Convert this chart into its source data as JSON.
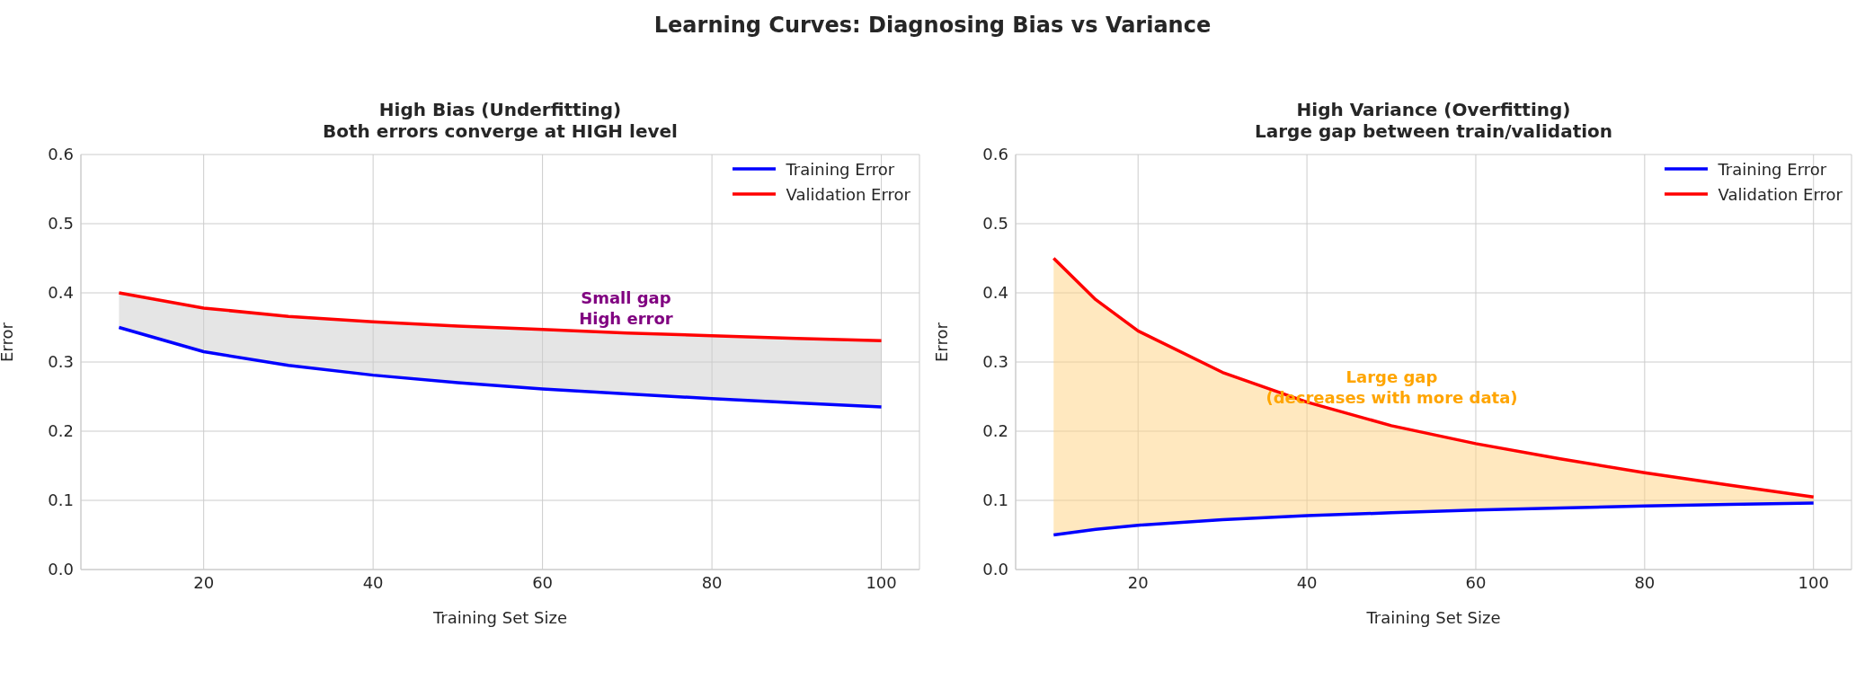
{
  "chart_data": [
    {
      "type": "line",
      "title": "Learning Curves: Diagnosing Bias vs Variance",
      "subtitle": "High Bias (Underfitting)\nBoth errors converge at HIGH level",
      "xlabel": "Training Set Size",
      "ylabel": "Error",
      "x": [
        10,
        20,
        30,
        40,
        50,
        60,
        70,
        80,
        90,
        100
      ],
      "series": [
        {
          "name": "Training Error",
          "color": "#0000ff",
          "values": [
            0.35,
            0.315,
            0.295,
            0.281,
            0.27,
            0.261,
            0.254,
            0.247,
            0.241,
            0.235
          ]
        },
        {
          "name": "Validation Error",
          "color": "#ff0000",
          "values": [
            0.4,
            0.378,
            0.366,
            0.358,
            0.352,
            0.347,
            0.342,
            0.338,
            0.334,
            0.331
          ],
          "lower": [
            0.35,
            0.315,
            0.295,
            0.281,
            0.27,
            0.261,
            0.254,
            0.247,
            0.241,
            0.235
          ],
          "upper": [
            0.4,
            0.378,
            0.366,
            0.358,
            0.352,
            0.347,
            0.342,
            0.338,
            0.334,
            0.331
          ]
        }
      ],
      "annotations": [
        "Small gap\nHigh error"
      ],
      "xlim": [
        5.5,
        104.5
      ],
      "xticks": [
        20,
        40,
        60,
        80,
        100
      ],
      "ylim": [
        0,
        0.6
      ],
      "yticks": [
        {
          "value": 0,
          "label": "0.0"
        },
        {
          "value": 0.1,
          "label": "0.1"
        },
        {
          "value": 0.2,
          "label": "0.2"
        },
        {
          "value": 0.3,
          "label": "0.3"
        },
        {
          "value": 0.4,
          "label": "0.4"
        },
        {
          "value": 0.5,
          "label": "0.5"
        },
        {
          "value": 0.6,
          "label": "0.6"
        }
      ],
      "grid": true,
      "legend": "top right"
    },
    {
      "type": "line",
      "subtitle": "High Variance (Overfitting)\nLarge gap between train/validation",
      "xlabel": "Training Set Size",
      "ylabel": "Error",
      "x": [
        10,
        15,
        20,
        30,
        40,
        50,
        60,
        70,
        80,
        90,
        100
      ],
      "series": [
        {
          "name": "Training Error",
          "color": "#0000ff",
          "values": [
            0.05,
            0.058,
            0.064,
            0.072,
            0.078,
            0.082,
            0.086,
            0.089,
            0.092,
            0.094,
            0.096
          ]
        },
        {
          "name": "Validation Error",
          "color": "#ff0000",
          "values": [
            0.45,
            0.39,
            0.345,
            0.285,
            0.242,
            0.208,
            0.182,
            0.16,
            0.14,
            0.122,
            0.105
          ],
          "lower": [
            0.05,
            0.058,
            0.064,
            0.072,
            0.078,
            0.082,
            0.086,
            0.089,
            0.092,
            0.094,
            0.096
          ],
          "upper": [
            0.45,
            0.39,
            0.345,
            0.285,
            0.242,
            0.208,
            0.182,
            0.16,
            0.14,
            0.122,
            0.105
          ]
        }
      ],
      "annotations": [
        "Large gap\n(decreases with more data)"
      ],
      "xlim": [
        5.5,
        104.5
      ],
      "xticks": [
        20,
        40,
        60,
        80,
        100
      ],
      "ylim": [
        0,
        0.6
      ],
      "yticks": [
        {
          "value": 0,
          "label": "0.0"
        },
        {
          "value": 0.1,
          "label": "0.1"
        },
        {
          "value": 0.2,
          "label": "0.2"
        },
        {
          "value": 0.3,
          "label": "0.3"
        },
        {
          "value": 0.4,
          "label": "0.4"
        },
        {
          "value": 0.5,
          "label": "0.5"
        },
        {
          "value": 0.6,
          "label": "0.6"
        }
      ],
      "grid": true,
      "legend": "top right"
    }
  ]
}
